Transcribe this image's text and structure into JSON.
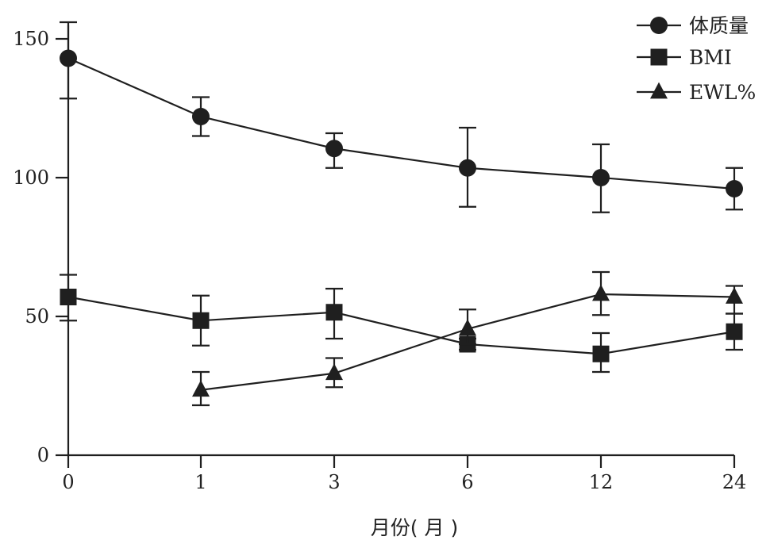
{
  "chart_data": {
    "type": "line",
    "x_categories": [
      "0",
      "1",
      "3",
      "6",
      "12",
      "24"
    ],
    "xlabel": "月份( 月 )",
    "ylabel": "",
    "ylim": [
      0,
      155
    ],
    "yticks": [
      "0",
      "50",
      "100",
      "150"
    ],
    "grid": false,
    "legend_position": "top-right",
    "series": [
      {
        "name": "体质量",
        "marker": "circle",
        "values": [
          143,
          122,
          110.5,
          103.5,
          100,
          96
        ],
        "error_low": [
          128.5,
          115,
          103.5,
          89.5,
          87.5,
          88.5
        ],
        "error_high": [
          156,
          129,
          116,
          118,
          112,
          103.5
        ]
      },
      {
        "name": "BMI",
        "marker": "square",
        "values": [
          57,
          48.5,
          51.5,
          40,
          36.5,
          44.5
        ],
        "error_low": [
          48.5,
          39.5,
          42,
          38,
          30,
          38
        ],
        "error_high": [
          65,
          57.5,
          60,
          42,
          44,
          51
        ]
      },
      {
        "name": "EWL%",
        "marker": "triangle",
        "start_index": 1,
        "values": [
          null,
          23.5,
          29.5,
          45.5,
          58,
          57
        ],
        "error_low": [
          null,
          18,
          24.5,
          40,
          50.5,
          51
        ],
        "error_high": [
          null,
          30,
          35,
          52.5,
          66,
          61
        ]
      }
    ]
  }
}
